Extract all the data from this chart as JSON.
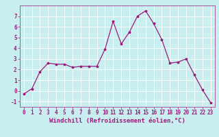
{
  "x": [
    0,
    1,
    2,
    3,
    4,
    5,
    6,
    7,
    8,
    9,
    10,
    11,
    12,
    13,
    14,
    15,
    16,
    17,
    18,
    19,
    20,
    21,
    22,
    23
  ],
  "y": [
    -0.3,
    0.2,
    1.8,
    2.6,
    2.5,
    2.5,
    2.2,
    2.3,
    2.3,
    2.3,
    3.9,
    6.5,
    4.4,
    5.5,
    7.0,
    7.5,
    6.3,
    4.8,
    2.6,
    2.7,
    3.0,
    1.5,
    0.1,
    -1.1
  ],
  "line_color": "#9b1a7a",
  "marker": "*",
  "marker_color": "#9b1a7a",
  "bg_color": "#c8eef0",
  "grid_color": "#ffffff",
  "xlabel": "Windchill (Refroidissement éolien,°C)",
  "xlabel_color": "#9b1a7a",
  "xlim": [
    -0.5,
    23.5
  ],
  "ylim": [
    -1.5,
    8.0
  ],
  "yticks": [
    -1,
    0,
    1,
    2,
    3,
    4,
    5,
    6,
    7
  ],
  "xticks": [
    0,
    1,
    2,
    3,
    4,
    5,
    6,
    7,
    8,
    9,
    10,
    11,
    12,
    13,
    14,
    15,
    16,
    17,
    18,
    19,
    20,
    21,
    22,
    23
  ],
  "tick_color": "#9b1a7a",
  "tick_labelsize": 5.5,
  "xlabel_fontsize": 6.5,
  "linewidth": 0.9,
  "markersize": 2.5
}
